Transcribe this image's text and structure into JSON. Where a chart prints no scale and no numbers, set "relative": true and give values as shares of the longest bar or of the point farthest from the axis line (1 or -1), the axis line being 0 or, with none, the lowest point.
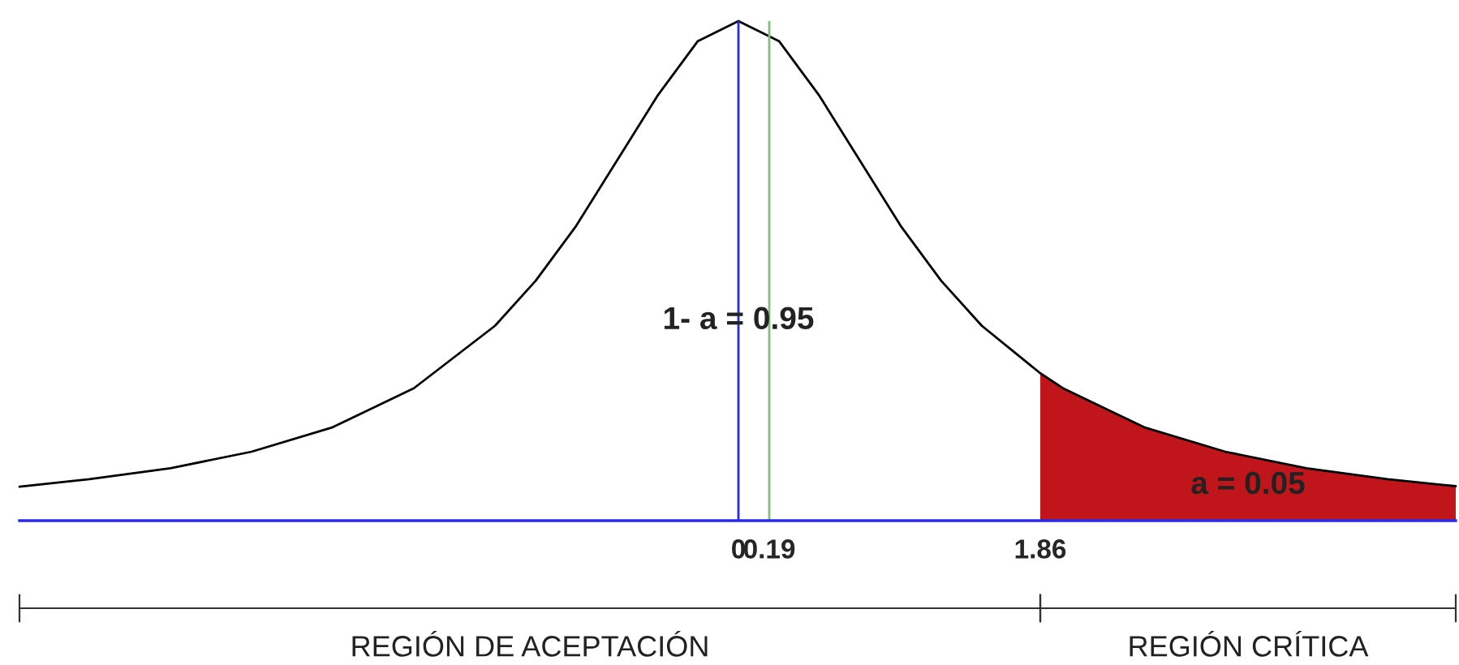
{
  "chart_data": {
    "type": "line",
    "relative": true,
    "x": [
      -4.43,
      -4.0,
      -3.5,
      -3.0,
      -2.5,
      -2.0,
      -1.5,
      -1.25,
      -1.0,
      -0.75,
      -0.5,
      -0.25,
      0.0,
      0.25,
      0.5,
      0.75,
      1.0,
      1.25,
      1.5,
      1.86,
      2.0,
      2.5,
      3.0,
      3.5,
      4.0,
      4.42
    ],
    "series": [
      {
        "color": "#000000",
        "values": [
          0.068,
          0.083,
          0.105,
          0.138,
          0.187,
          0.265,
          0.39,
          0.48,
          0.59,
          0.72,
          0.85,
          0.96,
          1.0,
          0.96,
          0.85,
          0.72,
          0.59,
          0.48,
          0.39,
          0.295,
          0.265,
          0.187,
          0.138,
          0.105,
          0.083,
          0.069
        ]
      },
      {
        "type": "area",
        "color": "#c0151b",
        "x": [
          1.86,
          2.0,
          2.5,
          3.0,
          3.5,
          4.0,
          4.42
        ],
        "values": [
          0.295,
          0.265,
          0.187,
          0.138,
          0.105,
          0.083,
          0.069
        ]
      }
    ],
    "xlim": [
      -4.43,
      4.42
    ],
    "xticks": [
      0,
      0.19,
      1.86
    ],
    "ref_lines": [
      {
        "axis": "x",
        "value": 0,
        "color": "#2a2ae6"
      },
      {
        "axis": "x",
        "value": 0.19,
        "color": "#7fbf7f"
      }
    ],
    "annotations": [
      "1- a = 0.95",
      "a = 0.05",
      "REGIÓN DE ACEPTACIÓN",
      "REGIÓN CRÍTICA"
    ],
    "grid": false,
    "legend": false
  }
}
